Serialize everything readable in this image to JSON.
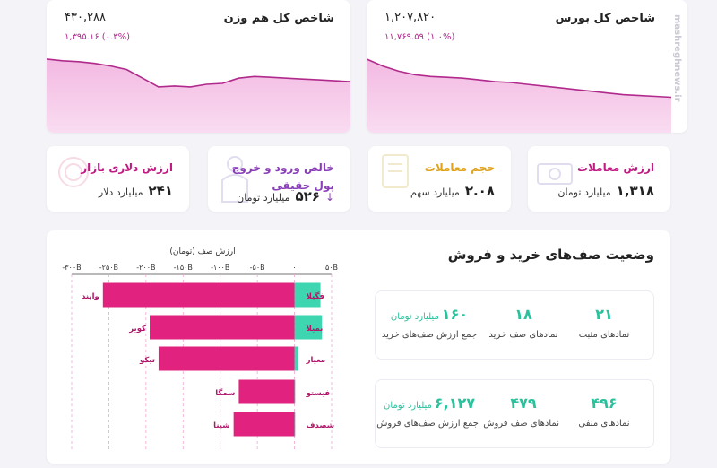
{
  "bourse_index": {
    "title": "شاخص کل بورس",
    "value": "۱,۲۰۷,۸۲۰",
    "change": "۱۱,۷۶۹.۵۹ (۱.۰%)",
    "chart_data": {
      "type": "area",
      "values": [
        100,
        96,
        93,
        91,
        90,
        89.5,
        89,
        88,
        87,
        86.5,
        85.5,
        84.5,
        83.5,
        82.5,
        81.5,
        80.5,
        79.5,
        79,
        78.5,
        78
      ]
    }
  },
  "equal_weight_index": {
    "title": "شاخص کل هم وزن",
    "value": "۴۳۰,۲۸۸",
    "change": "۱,۳۹۵.۱۶ (۰.۳%)",
    "chart_data": {
      "type": "area",
      "values": [
        100,
        99,
        98.5,
        97.5,
        96,
        94,
        89,
        84,
        84.5,
        84,
        85.5,
        86,
        89,
        90,
        89.5,
        89,
        88.5,
        88,
        87.5,
        87
      ]
    }
  },
  "stats": [
    {
      "title": "ارزش معاملات",
      "value": "۱,۳۱۸",
      "unit": "میلیارد تومان",
      "color": "#c11a83"
    },
    {
      "title": "حجم معاملات",
      "value": "۲.۰۸",
      "unit": "میلیارد سهم",
      "color": "#e0a21a"
    },
    {
      "title": "خالص ورود و خروج پول حقیقی",
      "value": "۵۲۶",
      "unit": "میلیارد تومان",
      "arrow": "↓",
      "color": "#8a3fb8"
    },
    {
      "title": "ارزش دلاری بازار",
      "value": "۲۴۱",
      "unit": "میلیارد دلار",
      "color": "#c11a83"
    }
  ],
  "queue": {
    "title": "وضعیت صف‌های خرید و فروش",
    "buy": {
      "positive_count": "۲۱",
      "positive_label": "نمادهای مثبت",
      "queue_count": "۱۸",
      "queue_label": "نمادهای صف خرید",
      "sum_value": "۱۶۰",
      "sum_unit": "میلیارد تومان",
      "sum_label": "جمع ارزش صف‌های خرید"
    },
    "sell": {
      "negative_count": "۴۹۶",
      "negative_label": "نمادهای منفی",
      "queue_count": "۴۷۹",
      "queue_label": "نمادهای صف فروش",
      "sum_value": "۶,۱۲۷",
      "sum_unit": "میلیارد تومان",
      "sum_label": "جمع ارزش صف‌های فروش"
    }
  },
  "chart_data": {
    "type": "bar",
    "title": "ارزش صف (تومان)",
    "xlim": [
      -300,
      50
    ],
    "tick_values": [
      -300,
      -250,
      -200,
      -150,
      -100,
      -50,
      0,
      50
    ],
    "tick_labels": [
      "-۳۰۰B",
      "-۲۵۰B",
      "-۲۰۰B",
      "-۱۵۰B",
      "-۱۰۰B",
      "-۵۰B",
      "۰",
      "۵۰B"
    ],
    "categories_buy": [
      "فگیلا",
      "بمیلا",
      "معیار",
      "فیستو",
      "شصدف"
    ],
    "categories_sell": [
      "وایند",
      "کویر",
      "تیکو",
      "سمگا",
      "شپنا"
    ],
    "series": [
      {
        "values": [
          35,
          37,
          5,
          1,
          1
        ],
        "color": "#3dd6b0"
      },
      {
        "values": [
          -258,
          -195,
          -183,
          -75,
          -82
        ],
        "color": "#e2227f"
      }
    ]
  },
  "watermark": "mashreghnews.ir"
}
